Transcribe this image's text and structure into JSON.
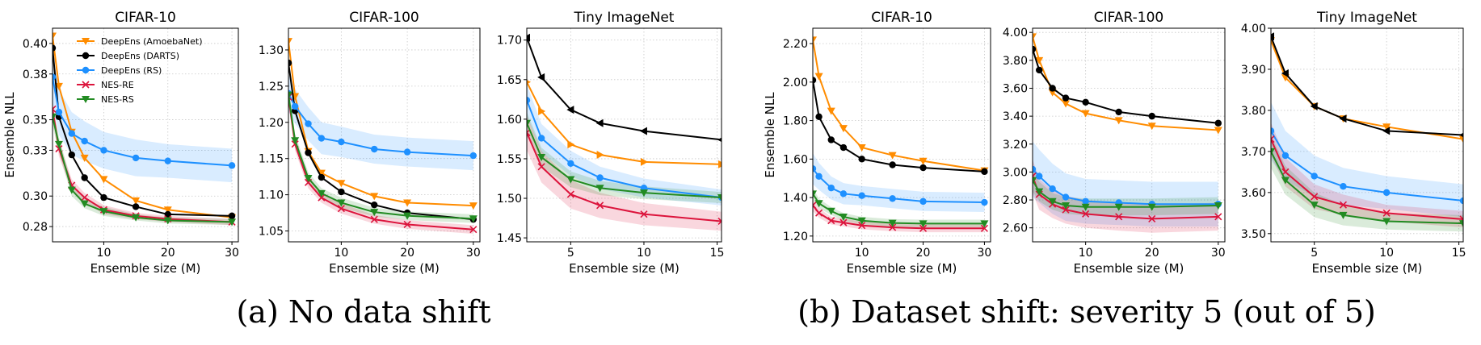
{
  "captions": {
    "a": "(a) No data shift",
    "b": "(b) Dataset shift: severity 5 (out of 5)"
  },
  "legend": [
    {
      "label": "DeepEns (AmoebaNet)",
      "color": "#ff8c00",
      "marker": "triangle-down"
    },
    {
      "label": "DeepEns (DARTS)",
      "color": "#000000",
      "marker": "circle"
    },
    {
      "label": "DeepEns (RS)",
      "color": "#1e90ff",
      "marker": "circle"
    },
    {
      "label": "NES-RE",
      "color": "#dc143c",
      "marker": "x"
    },
    {
      "label": "NES-RS",
      "color": "#228b22",
      "marker": "triangle-down"
    }
  ],
  "chart_data": [
    {
      "type": "line",
      "title": "CIFAR-10",
      "xlabel": "Ensemble size (M)",
      "ylabel": "Ensemble NLL",
      "xlim": [
        2,
        31
      ],
      "ylim": [
        0.27,
        0.41
      ],
      "xticks": [
        10,
        20,
        30
      ],
      "yticks": [
        0.28,
        0.3,
        0.33,
        0.35,
        0.38,
        0.4
      ],
      "yticklabels": [
        "0.28",
        "0.30",
        "0.33",
        "0.35",
        "0.38",
        "0.40"
      ],
      "series": [
        {
          "name": "DeepEns (AmoebaNet)",
          "x": [
            2,
            3,
            5,
            7,
            10,
            15,
            20,
            30
          ],
          "y": [
            0.405,
            0.372,
            0.342,
            0.325,
            0.311,
            0.297,
            0.291,
            0.286
          ]
        },
        {
          "name": "DeepEns (DARTS)",
          "x": [
            2,
            3,
            5,
            7,
            10,
            15,
            20,
            30
          ],
          "y": [
            0.397,
            0.352,
            0.327,
            0.312,
            0.299,
            0.293,
            0.288,
            0.287
          ]
        },
        {
          "name": "DeepEns (RS)",
          "x": [
            2,
            3,
            5,
            7,
            10,
            15,
            20,
            30
          ],
          "y": [
            0.378,
            0.355,
            0.341,
            0.336,
            0.33,
            0.325,
            0.323,
            0.32
          ],
          "band": [
            0.016,
            0.015,
            0.014,
            0.013,
            0.012,
            0.012,
            0.011,
            0.011
          ]
        },
        {
          "name": "NES-RE",
          "x": [
            2,
            3,
            5,
            7,
            10,
            15,
            20,
            30
          ],
          "y": [
            0.357,
            0.331,
            0.307,
            0.299,
            0.291,
            0.287,
            0.285,
            0.283
          ],
          "band": [
            0.006,
            0.005,
            0.004,
            0.003,
            0.003,
            0.002,
            0.002,
            0.002
          ]
        },
        {
          "name": "NES-RS",
          "x": [
            2,
            3,
            5,
            7,
            10,
            15,
            20,
            30
          ],
          "y": [
            0.352,
            0.334,
            0.304,
            0.295,
            0.29,
            0.286,
            0.284,
            0.283
          ],
          "band": [
            0.006,
            0.005,
            0.004,
            0.003,
            0.003,
            0.002,
            0.002,
            0.002
          ]
        }
      ]
    },
    {
      "type": "line",
      "title": "CIFAR-100",
      "xlabel": "Ensemble size (M)",
      "ylabel": "",
      "xlim": [
        2,
        31
      ],
      "ylim": [
        1.035,
        1.33
      ],
      "xticks": [
        10,
        20,
        30
      ],
      "yticks": [
        1.05,
        1.1,
        1.15,
        1.2,
        1.25,
        1.3
      ],
      "yticklabels": [
        "1.05",
        "1.10",
        "1.15",
        "1.20",
        "1.25",
        "1.30"
      ],
      "series": [
        {
          "name": "DeepEns (AmoebaNet)",
          "x": [
            2,
            3,
            5,
            7,
            10,
            15,
            20,
            30
          ],
          "y": [
            1.312,
            1.236,
            1.16,
            1.13,
            1.116,
            1.098,
            1.089,
            1.085
          ]
        },
        {
          "name": "DeepEns (DARTS)",
          "x": [
            2,
            3,
            5,
            7,
            10,
            15,
            20,
            30
          ],
          "y": [
            1.282,
            1.216,
            1.158,
            1.124,
            1.104,
            1.086,
            1.075,
            1.066
          ]
        },
        {
          "name": "DeepEns (RS)",
          "x": [
            2,
            3,
            5,
            7,
            10,
            15,
            20,
            30
          ],
          "y": [
            1.24,
            1.222,
            1.198,
            1.178,
            1.173,
            1.163,
            1.159,
            1.154
          ],
          "band": [
            0.025,
            0.024,
            0.023,
            0.022,
            0.021,
            0.02,
            0.02,
            0.02
          ]
        },
        {
          "name": "NES-RE",
          "x": [
            2,
            3,
            5,
            7,
            10,
            15,
            20,
            30
          ],
          "y": [
            1.235,
            1.17,
            1.117,
            1.096,
            1.081,
            1.066,
            1.059,
            1.052
          ],
          "band": [
            0.01,
            0.009,
            0.008,
            0.007,
            0.007,
            0.006,
            0.006,
            0.006
          ]
        },
        {
          "name": "NES-RS",
          "x": [
            2,
            3,
            5,
            7,
            10,
            15,
            20,
            30
          ],
          "y": [
            1.238,
            1.175,
            1.123,
            1.102,
            1.089,
            1.076,
            1.071,
            1.067
          ],
          "band": [
            0.01,
            0.009,
            0.008,
            0.007,
            0.007,
            0.006,
            0.006,
            0.006
          ]
        }
      ]
    },
    {
      "type": "line",
      "title": "Tiny ImageNet",
      "xlabel": "Ensemble size (M)",
      "ylabel": "",
      "xlim": [
        2,
        15.3
      ],
      "ylim": [
        1.445,
        1.715
      ],
      "xticks": [
        5,
        10,
        15
      ],
      "yticks": [
        1.45,
        1.5,
        1.55,
        1.6,
        1.65,
        1.7
      ],
      "yticklabels": [
        "1.45",
        "1.50",
        "1.55",
        "1.60",
        "1.65",
        "1.70"
      ],
      "series": [
        {
          "name": "DeepEns (AmoebaNet)",
          "x": [
            2,
            3,
            5,
            7,
            10,
            15.3
          ],
          "y": [
            1.647,
            1.61,
            1.568,
            1.555,
            1.546,
            1.543
          ]
        },
        {
          "name": "DeepEns (DARTS)",
          "x": [
            2,
            3,
            5,
            7,
            10,
            15.3
          ],
          "y": [
            1.703,
            1.653,
            1.612,
            1.595,
            1.585,
            1.574
          ]
        },
        {
          "name": "DeepEns (RS)",
          "x": [
            2,
            3,
            5,
            7,
            10,
            15.3
          ],
          "y": [
            1.624,
            1.576,
            1.544,
            1.526,
            1.513,
            1.501
          ],
          "band": [
            0.02,
            0.018,
            0.016,
            0.014,
            0.012,
            0.01
          ]
        },
        {
          "name": "NES-RE",
          "x": [
            2,
            3,
            5,
            7,
            10,
            15.3
          ],
          "y": [
            1.583,
            1.54,
            1.505,
            1.491,
            1.48,
            1.471
          ],
          "band": [
            0.022,
            0.02,
            0.018,
            0.016,
            0.014,
            0.012
          ]
        },
        {
          "name": "NES-RS",
          "x": [
            2,
            3,
            5,
            7,
            10,
            15.3
          ],
          "y": [
            1.595,
            1.552,
            1.524,
            1.513,
            1.507,
            1.501
          ],
          "band": [
            0.014,
            0.012,
            0.01,
            0.009,
            0.008,
            0.007
          ]
        }
      ]
    },
    {
      "type": "line",
      "title": "CIFAR-10",
      "xlabel": "Ensemble size (M)",
      "ylabel": "Ensemble NLL",
      "xlim": [
        2,
        31
      ],
      "ylim": [
        1.17,
        2.28
      ],
      "xticks": [
        10,
        20,
        30
      ],
      "yticks": [
        1.2,
        1.4,
        1.6,
        1.8,
        2.0,
        2.2
      ],
      "yticklabels": [
        "1.20",
        "1.40",
        "1.60",
        "1.80",
        "2.00",
        "2.20"
      ],
      "series": [
        {
          "name": "DeepEns (AmoebaNet)",
          "x": [
            2,
            3,
            5,
            7,
            10,
            15,
            20,
            30
          ],
          "y": [
            2.22,
            2.03,
            1.85,
            1.76,
            1.66,
            1.62,
            1.59,
            1.54
          ]
        },
        {
          "name": "DeepEns (DARTS)",
          "x": [
            2,
            3,
            5,
            7,
            10,
            15,
            20,
            30
          ],
          "y": [
            2.01,
            1.82,
            1.7,
            1.66,
            1.6,
            1.57,
            1.555,
            1.535
          ]
        },
        {
          "name": "DeepEns (RS)",
          "x": [
            2,
            3,
            5,
            7,
            10,
            15,
            20,
            30
          ],
          "y": [
            1.55,
            1.51,
            1.45,
            1.42,
            1.41,
            1.395,
            1.38,
            1.375
          ],
          "band": [
            0.08,
            0.07,
            0.06,
            0.055,
            0.05,
            0.05,
            0.05,
            0.05
          ]
        },
        {
          "name": "NES-RE",
          "x": [
            2,
            3,
            5,
            7,
            10,
            15,
            20,
            30
          ],
          "y": [
            1.36,
            1.32,
            1.28,
            1.27,
            1.255,
            1.245,
            1.24,
            1.24
          ],
          "band": [
            0.03,
            0.025,
            0.02,
            0.02,
            0.02,
            0.02,
            0.02,
            0.02
          ]
        },
        {
          "name": "NES-RS",
          "x": [
            2,
            3,
            5,
            7,
            10,
            15,
            20,
            30
          ],
          "y": [
            1.42,
            1.37,
            1.33,
            1.3,
            1.28,
            1.268,
            1.265,
            1.265
          ],
          "band": [
            0.03,
            0.025,
            0.02,
            0.02,
            0.02,
            0.02,
            0.02,
            0.02
          ]
        }
      ]
    },
    {
      "type": "line",
      "title": "CIFAR-100",
      "xlabel": "Ensemble size (M)",
      "ylabel": "",
      "xlim": [
        2,
        31
      ],
      "ylim": [
        2.5,
        4.03
      ],
      "xticks": [
        10,
        20,
        30
      ],
      "yticks": [
        2.6,
        2.8,
        3.0,
        3.2,
        3.4,
        3.6,
        3.8,
        4.0
      ],
      "yticklabels": [
        "2.60",
        "2.80",
        "3.00",
        "3.20",
        "3.40",
        "3.60",
        "3.80",
        "4.00"
      ],
      "series": [
        {
          "name": "DeepEns (AmoebaNet)",
          "x": [
            2,
            3,
            5,
            7,
            10,
            15,
            20,
            30
          ],
          "y": [
            3.97,
            3.8,
            3.57,
            3.49,
            3.42,
            3.37,
            3.33,
            3.3
          ]
        },
        {
          "name": "DeepEns (DARTS)",
          "x": [
            2,
            3,
            5,
            7,
            10,
            15,
            20,
            30
          ],
          "y": [
            3.88,
            3.73,
            3.6,
            3.53,
            3.5,
            3.43,
            3.4,
            3.35
          ]
        },
        {
          "name": "DeepEns (RS)",
          "x": [
            2,
            3,
            5,
            7,
            10,
            15,
            20,
            30
          ],
          "y": [
            3.02,
            2.97,
            2.88,
            2.82,
            2.79,
            2.78,
            2.77,
            2.77
          ],
          "band": [
            0.2,
            0.19,
            0.18,
            0.17,
            0.16,
            0.16,
            0.16,
            0.16
          ]
        },
        {
          "name": "NES-RE",
          "x": [
            2,
            3,
            5,
            7,
            10,
            15,
            20,
            30
          ],
          "y": [
            2.97,
            2.84,
            2.77,
            2.73,
            2.7,
            2.68,
            2.665,
            2.68
          ],
          "band": [
            0.12,
            0.11,
            0.1,
            0.1,
            0.1,
            0.1,
            0.1,
            0.1
          ]
        },
        {
          "name": "NES-RS",
          "x": [
            2,
            3,
            5,
            7,
            10,
            15,
            20,
            30
          ],
          "y": [
            2.94,
            2.86,
            2.79,
            2.76,
            2.75,
            2.75,
            2.75,
            2.76
          ],
          "band": [
            0.08,
            0.07,
            0.06,
            0.06,
            0.06,
            0.06,
            0.06,
            0.06
          ]
        }
      ]
    },
    {
      "type": "line",
      "title": "Tiny ImageNet",
      "xlabel": "Ensemble size (M)",
      "ylabel": "",
      "xlim": [
        2,
        15.3
      ],
      "ylim": [
        3.48,
        4.0
      ],
      "xticks": [
        5,
        10,
        15
      ],
      "yticks": [
        3.5,
        3.6,
        3.7,
        3.8,
        3.9,
        4.0
      ],
      "yticklabels": [
        "3.50",
        "3.60",
        "3.70",
        "3.80",
        "3.90",
        "4.00"
      ],
      "series": [
        {
          "name": "DeepEns (AmoebaNet)",
          "x": [
            2,
            3,
            5,
            7,
            10,
            15.3
          ],
          "y": [
            3.97,
            3.88,
            3.81,
            3.78,
            3.76,
            3.73
          ]
        },
        {
          "name": "DeepEns (DARTS)",
          "x": [
            2,
            3,
            5,
            7,
            10,
            15.3
          ],
          "y": [
            3.98,
            3.89,
            3.81,
            3.78,
            3.75,
            3.74
          ]
        },
        {
          "name": "DeepEns (RS)",
          "x": [
            2,
            3,
            5,
            7,
            10,
            15.3
          ],
          "y": [
            3.75,
            3.69,
            3.64,
            3.615,
            3.6,
            3.58
          ],
          "band": [
            0.07,
            0.06,
            0.05,
            0.045,
            0.04,
            0.04
          ]
        },
        {
          "name": "NES-RE",
          "x": [
            2,
            3,
            5,
            7,
            10,
            15.3
          ],
          "y": [
            3.73,
            3.65,
            3.59,
            3.57,
            3.55,
            3.535
          ],
          "band": [
            0.04,
            0.035,
            0.03,
            0.025,
            0.02,
            0.02
          ]
        },
        {
          "name": "NES-RS",
          "x": [
            2,
            3,
            5,
            7,
            10,
            15.3
          ],
          "y": [
            3.7,
            3.63,
            3.57,
            3.545,
            3.53,
            3.525
          ],
          "band": [
            0.04,
            0.035,
            0.03,
            0.025,
            0.02,
            0.02
          ]
        }
      ]
    }
  ]
}
